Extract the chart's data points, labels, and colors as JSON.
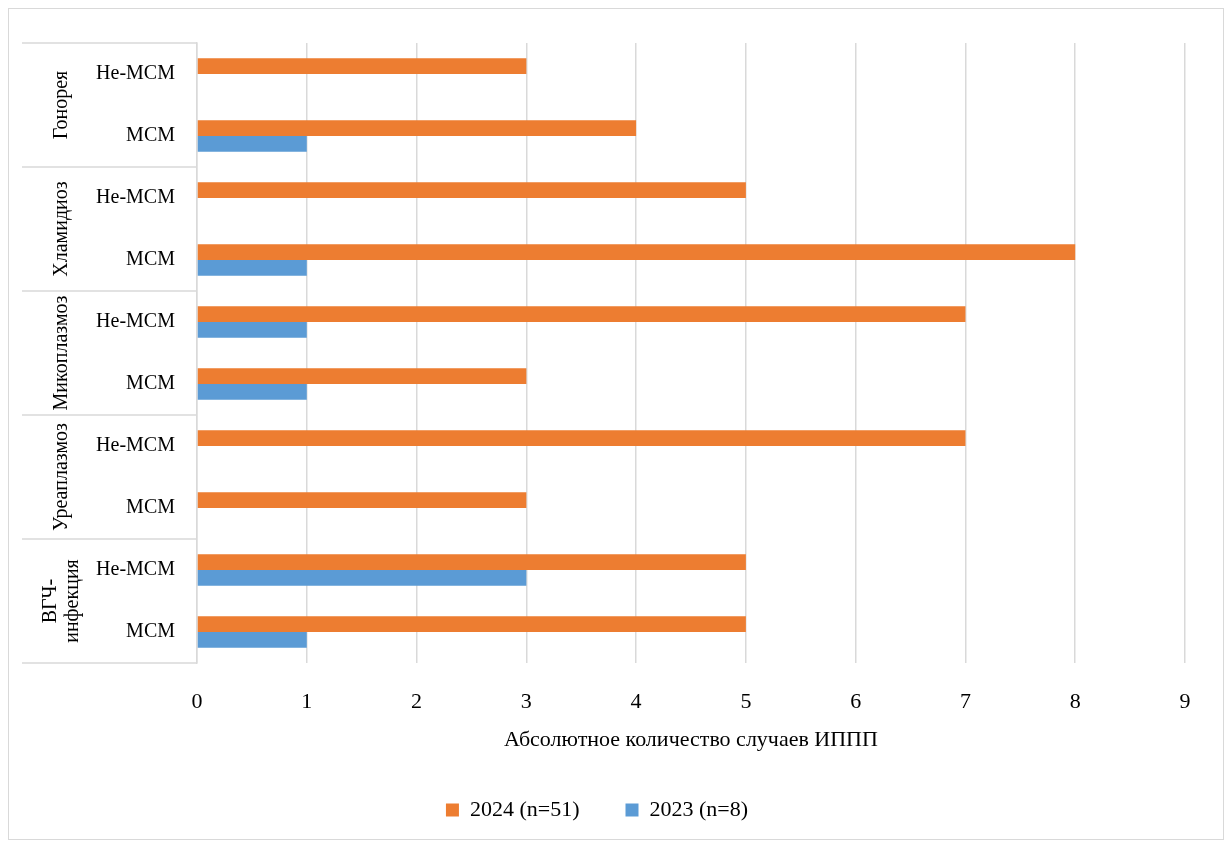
{
  "chart_data": {
    "type": "bar",
    "orientation": "horizontal",
    "categories": [
      "Не-МСМ",
      "МСМ",
      "Не-МСМ",
      "МСМ",
      "Не-МСМ",
      "МСМ",
      "Не-МСМ",
      "МСМ",
      "Не-МСМ",
      "МСМ"
    ],
    "series": [
      {
        "name": "2024 (n=51)",
        "color": "#ed7d31",
        "values": [
          3,
          4,
          5,
          8,
          7,
          3,
          7,
          3,
          5,
          5
        ]
      },
      {
        "name": "2023 (n=8)",
        "color": "#5b9bd5",
        "values": [
          null,
          1,
          null,
          1,
          1,
          1,
          null,
          null,
          3,
          1
        ]
      }
    ],
    "annotations": [
      "Гонорея",
      "Хламидиоз",
      "Микоплазмоз",
      "Уреаплазмоз",
      "ВГЧ-инфекция"
    ],
    "xlabel": "Абсолютное количество случаев ИППП",
    "xlim": [
      0,
      9
    ],
    "xticks": [
      0,
      1,
      2,
      3,
      4,
      5,
      6,
      7,
      8,
      9
    ],
    "grid": "x",
    "legend": "bottom"
  }
}
